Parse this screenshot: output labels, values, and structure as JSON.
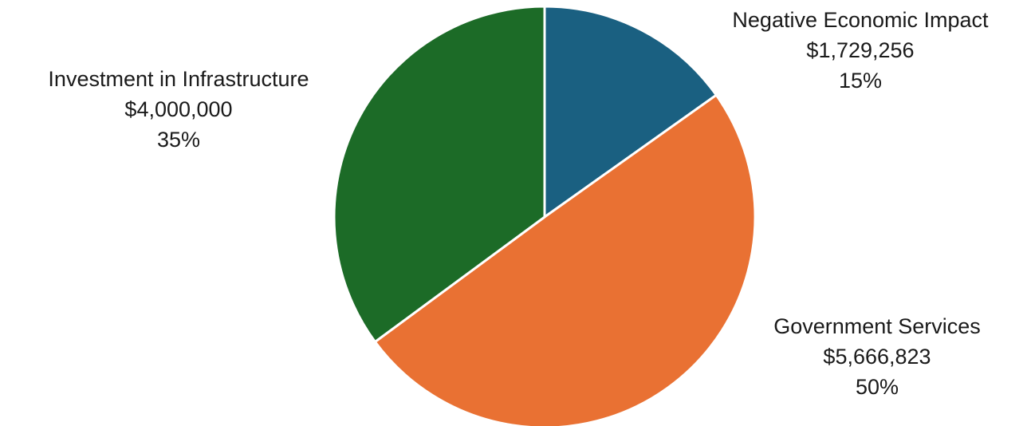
{
  "chart_data": {
    "type": "pie",
    "slices": [
      {
        "name": "Negative Economic Impact",
        "value": 1729256,
        "value_label": "$1,729,256",
        "percent_label": "15%",
        "color": "#1a6081"
      },
      {
        "name": "Government Services",
        "value": 5666823,
        "value_label": "$5,666,823",
        "percent_label": "50%",
        "color": "#e97133"
      },
      {
        "name": "Investment in Infrastructure",
        "value": 4000000,
        "value_label": "$4,000,000",
        "percent_label": "35%",
        "color": "#1c6b27"
      }
    ],
    "start": "top",
    "direction": "clockwise",
    "slice_border_color": "#ffffff"
  }
}
